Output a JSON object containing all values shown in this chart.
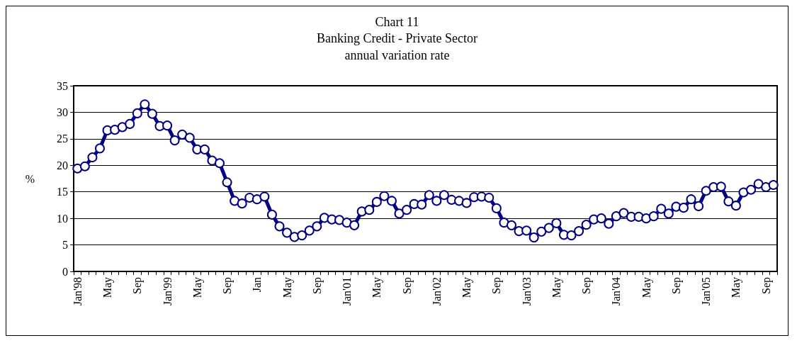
{
  "chart_data": {
    "type": "line",
    "title": "Chart 11",
    "subtitle": "Banking Credit - Private Sector\nannual variation rate",
    "ylabel": "%",
    "categories": [
      "Jan'98",
      null,
      null,
      null,
      "May",
      null,
      null,
      null,
      "Sep",
      null,
      null,
      null,
      "Jan'99",
      null,
      null,
      null,
      "May",
      null,
      null,
      null,
      "Sep",
      null,
      null,
      null,
      "Jan",
      null,
      null,
      null,
      "May",
      null,
      null,
      null,
      "Sep",
      null,
      null,
      null,
      "Jan'01",
      null,
      null,
      null,
      "May",
      null,
      null,
      null,
      "Sep",
      null,
      null,
      null,
      "Jan'02",
      null,
      null,
      null,
      "May",
      null,
      null,
      null,
      "Sep",
      null,
      null,
      null,
      "Jan'03",
      null,
      null,
      null,
      "May",
      null,
      null,
      null,
      "Sep",
      null,
      null,
      null,
      "Jan'04",
      null,
      null,
      null,
      "May",
      null,
      null,
      null,
      "Sep",
      null,
      null,
      null,
      "Jan'05",
      null,
      null,
      null,
      "May",
      null,
      null,
      null,
      "Sep",
      null
    ],
    "series": [
      {
        "color": "#000080",
        "values": [
          19.4,
          19.8,
          21.5,
          23.2,
          26.6,
          26.7,
          27.2,
          27.8,
          29.8,
          31.5,
          29.7,
          27.4,
          27.5,
          24.7,
          25.8,
          25.2,
          23.0,
          23.0,
          20.9,
          20.4,
          16.8,
          13.3,
          12.8,
          13.9,
          13.6,
          14.1,
          10.7,
          8.5,
          7.3,
          6.5,
          6.8,
          7.7,
          8.5,
          10.1,
          9.8,
          9.7,
          9.2,
          8.7,
          11.3,
          11.6,
          13.1,
          14.2,
          13.3,
          10.9,
          11.6,
          12.7,
          12.6,
          14.4,
          13.3,
          14.4,
          13.5,
          13.3,
          12.9,
          14.0,
          14.1,
          13.9,
          11.9,
          9.2,
          8.7,
          7.6,
          7.7,
          6.4,
          7.5,
          8.2,
          9.1,
          6.9,
          6.8,
          7.6,
          8.8,
          9.8,
          10.0,
          9.0,
          10.4,
          11.0,
          10.3,
          10.3,
          10.0,
          10.4,
          11.8,
          10.9,
          12.2,
          12.0,
          13.6,
          12.3,
          15.2,
          15.9,
          16.0,
          13.2,
          12.4,
          14.9,
          15.4,
          16.5,
          15.9,
          16.3
        ]
      }
    ],
    "ylim": [
      0,
      35
    ],
    "yticks": [
      0,
      5,
      10,
      15,
      20,
      25,
      30,
      35
    ],
    "grid": "y",
    "marker": "circle",
    "line_style": "solid"
  }
}
